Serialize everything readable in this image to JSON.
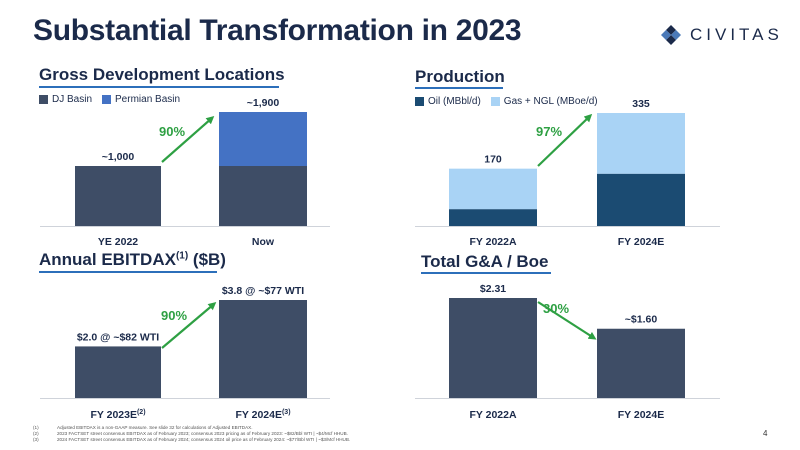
{
  "title": "Substantial Transformation in 2023",
  "logo": {
    "text": "CIVITAS"
  },
  "page_number": "4",
  "colors": {
    "navy": "#3e4d66",
    "blue": "#4472c4",
    "dark_teal": "#1b4b72",
    "light_blue": "#a9d3f5",
    "green": "#2ea043",
    "text": "#1b2a4a"
  },
  "footnotes": [
    {
      "num": "(1)",
      "text": "Adjusted EBITDAX is a non-GAAP measure. See slide 32 for calculations of Adjusted EBITDAX."
    },
    {
      "num": "(2)",
      "text": "2023 FACTSET street consensus EBITDAX as of February 2023; consensus 2023 pricing as of February 2023: ~$82/Bbl WTI | ~$4/Mcf HHUB."
    },
    {
      "num": "(3)",
      "text": "2024 FACTSET street consensus EBITDAX as of February 2024; consensus 2024 oil price as of February 2024: ~$77/Bbl WTI | ~$3/Mcf HHUB."
    }
  ],
  "chart_data": [
    {
      "id": "gross-dev",
      "title": "Gross Development Locations",
      "type": "bar",
      "stacked": true,
      "categories": [
        "YE 2022",
        "Now"
      ],
      "series": [
        {
          "name": "DJ Basin",
          "values": [
            1000,
            1000
          ]
        },
        {
          "name": "Permian Basin",
          "values": [
            0,
            900
          ]
        }
      ],
      "data_labels": [
        "~1,000",
        "~1,900"
      ],
      "change_label": "90%",
      "ylim": [
        0,
        1900
      ]
    },
    {
      "id": "production",
      "title": "Production",
      "type": "bar",
      "stacked": true,
      "categories": [
        "FY 2022A",
        "FY 2024E"
      ],
      "series": [
        {
          "name": "Oil (MBbl/d)",
          "values": [
            50,
            155
          ]
        },
        {
          "name": "Gas + NGL (MBoe/d)",
          "values": [
            120,
            180
          ]
        }
      ],
      "data_labels": [
        "170",
        "335"
      ],
      "change_label": "97%",
      "ylim": [
        0,
        335
      ]
    },
    {
      "id": "ebitdax",
      "title": "Annual EBITDAX",
      "title_sup": "(1)",
      "title_suffix": " ($B)",
      "type": "bar",
      "categories": [
        "FY 2023E",
        "FY 2024E"
      ],
      "category_sups": [
        "(2)",
        "(3)"
      ],
      "values": [
        2.0,
        3.8
      ],
      "data_labels": [
        "$2.0 @ ~$82 WTI",
        "$3.8 @ ~$77 WTI"
      ],
      "change_label": "90%",
      "ylim": [
        0,
        3.8
      ]
    },
    {
      "id": "ga",
      "title": "Total G&A / Boe",
      "type": "bar",
      "categories": [
        "FY 2022A",
        "FY 2024E"
      ],
      "values": [
        2.31,
        1.6
      ],
      "data_labels": [
        "$2.31",
        "~$1.60"
      ],
      "change_label": "30%",
      "ylim": [
        0,
        2.31
      ]
    }
  ]
}
